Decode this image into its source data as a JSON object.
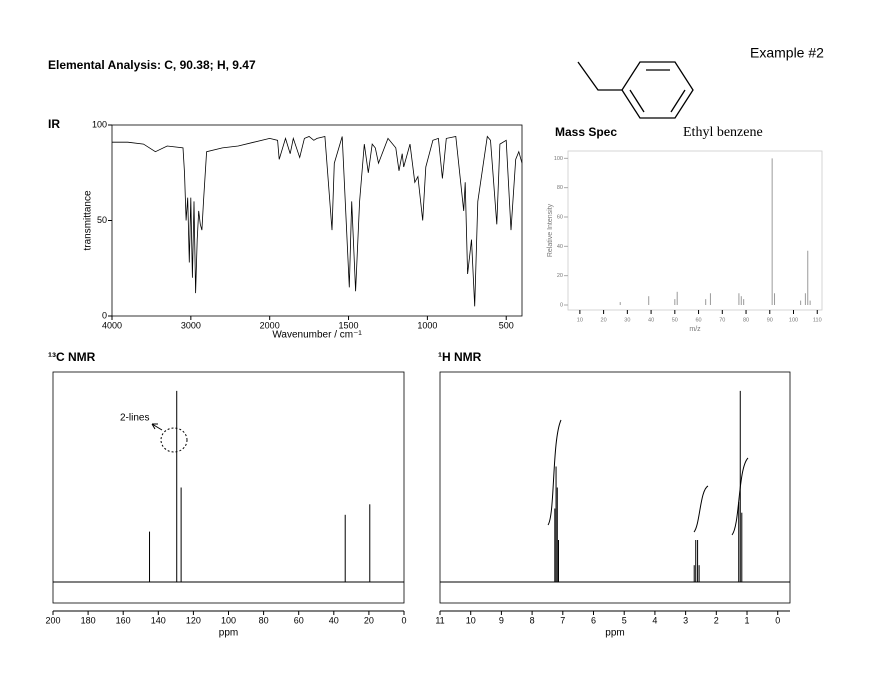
{
  "header": {
    "elemental_analysis": "Elemental Analysis: C, 90.38; H, 9.47",
    "example": "Example #2",
    "compound": "Ethyl benzene"
  },
  "chart_data": [
    {
      "type": "line",
      "title": "IR",
      "color": "#000000",
      "x": [
        4000,
        3800,
        3600,
        3450,
        3300,
        3100,
        3080,
        3060,
        3040,
        3020,
        3000,
        2980,
        2960,
        2940,
        2920,
        2900,
        2880,
        2860,
        2840,
        2800,
        2600,
        2400,
        2200,
        2000,
        1950,
        1940,
        1900,
        1870,
        1850,
        1810,
        1780,
        1750,
        1720,
        1700,
        1650,
        1605,
        1590,
        1540,
        1495,
        1480,
        1455,
        1430,
        1400,
        1375,
        1350,
        1330,
        1310,
        1250,
        1200,
        1180,
        1160,
        1150,
        1110,
        1080,
        1060,
        1030,
        1010,
        965,
        930,
        905,
        880,
        820,
        770,
        760,
        745,
        720,
        700,
        680,
        620,
        600,
        560,
        540,
        500,
        470,
        440,
        420,
        400
      ],
      "values": [
        91,
        91,
        90,
        86,
        89,
        88,
        75,
        50,
        62,
        28,
        62,
        20,
        60,
        12,
        40,
        55,
        48,
        45,
        60,
        86,
        88,
        89,
        91,
        93,
        92,
        82,
        93,
        85,
        93,
        83,
        93,
        94,
        92,
        93,
        94,
        45,
        80,
        94,
        15,
        60,
        13,
        60,
        90,
        75,
        90,
        88,
        80,
        93,
        88,
        76,
        85,
        78,
        90,
        70,
        73,
        50,
        78,
        92,
        93,
        72,
        93,
        94,
        55,
        70,
        22,
        40,
        5,
        60,
        94,
        92,
        48,
        90,
        92,
        45,
        82,
        86,
        80
      ],
      "xlim": [
        4000,
        400
      ],
      "xticks": [
        4000,
        3000,
        2000,
        1500,
        1000,
        500
      ],
      "x_scale_break": 2000,
      "ylim": [
        0,
        100
      ],
      "yticks": [
        0,
        50,
        100
      ],
      "xlabel": "Wavenumber / cm⁻¹",
      "ylabel": "transmittance"
    },
    {
      "type": "stick",
      "title": "Mass Spec",
      "color": "#9a9a9a",
      "x": [
        27,
        39,
        50,
        51,
        63,
        65,
        77,
        78,
        79,
        91,
        92,
        103,
        105,
        106,
        107
      ],
      "values": [
        2,
        6,
        4,
        9,
        4,
        8,
        8,
        6,
        4,
        100,
        8,
        3,
        8,
        37,
        3
      ],
      "xlim": [
        5,
        112
      ],
      "xticks": [
        10,
        20,
        30,
        40,
        50,
        60,
        70,
        80,
        90,
        100,
        110
      ],
      "ylim": [
        0,
        105
      ],
      "yticks": [
        0,
        20,
        40,
        60,
        80,
        100
      ],
      "xlabel": "m/z",
      "ylabel": "Relative Intensity"
    },
    {
      "type": "stick",
      "title": "¹³C NMR",
      "color": "#000000",
      "x": [
        145,
        129.5,
        127,
        33.5,
        19.5
      ],
      "values": [
        24,
        91,
        45,
        32,
        37
      ],
      "xlim": [
        200,
        0
      ],
      "xticks": [
        200,
        180,
        160,
        140,
        120,
        100,
        80,
        60,
        40,
        20,
        0
      ],
      "ylim": [
        -10,
        100
      ],
      "xlabel": "ppm",
      "annotation": "2-lines"
    },
    {
      "type": "stick",
      "title": "¹H NMR",
      "color": "#000000",
      "x": [
        7.26,
        7.22,
        7.18,
        7.14,
        2.72,
        2.67,
        2.61,
        2.56,
        1.27,
        1.22,
        1.17
      ],
      "values": [
        35,
        55,
        45,
        20,
        8,
        20,
        20,
        8,
        38,
        91,
        33
      ],
      "xlim": [
        11,
        -0.4
      ],
      "xticks": [
        11,
        10,
        9,
        8,
        7,
        6,
        5,
        4,
        3,
        2,
        1,
        0
      ],
      "ylim": [
        -10,
        100
      ],
      "xlabel": "ppm"
    }
  ]
}
